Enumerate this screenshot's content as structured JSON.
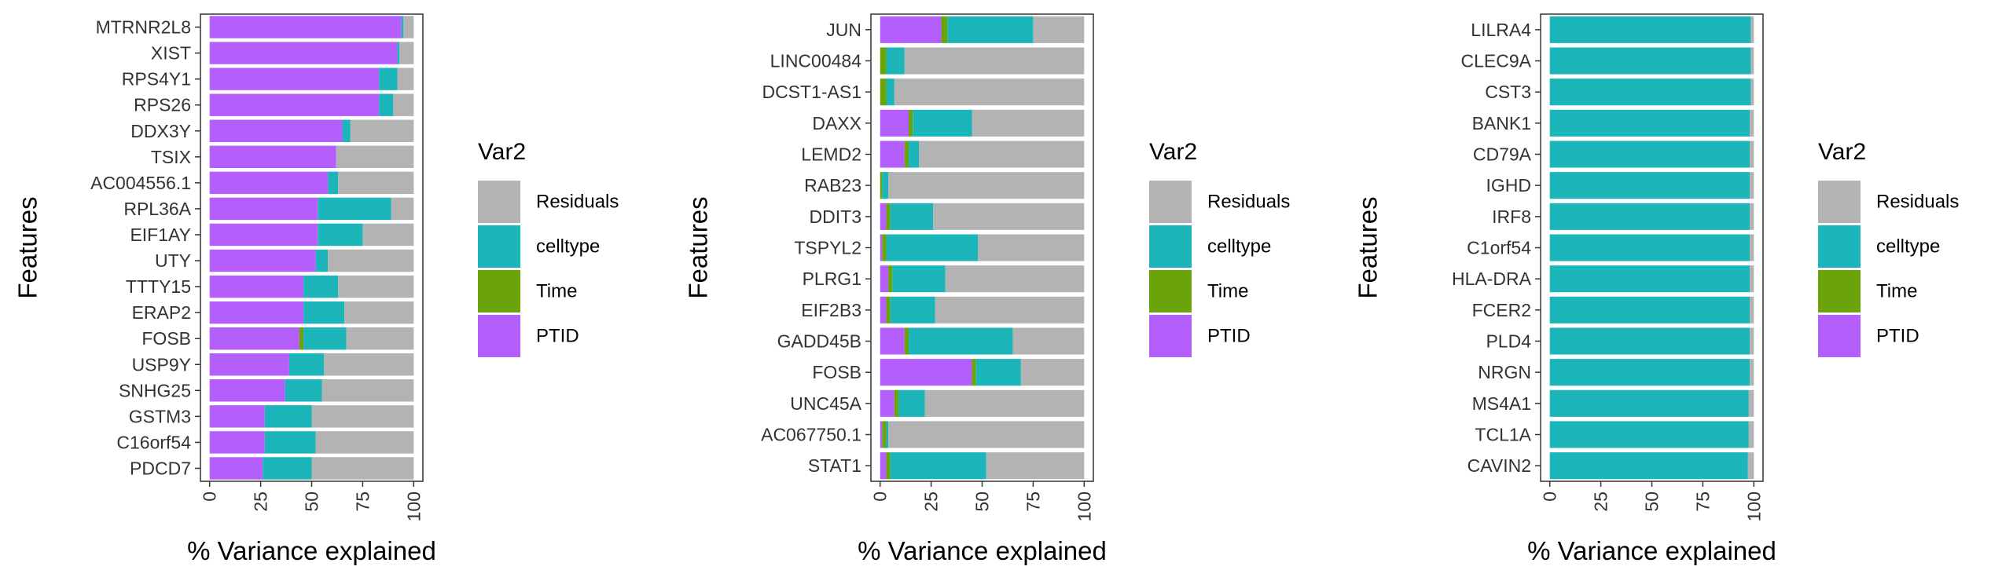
{
  "colors": {
    "Residuals": "#b3b3b3",
    "celltype": "#1cb5b9",
    "Time": "#6aa30a",
    "PTID": "#b45ffc"
  },
  "legend": {
    "title": "Var2",
    "items": [
      "Residuals",
      "celltype",
      "Time",
      "PTID"
    ]
  },
  "chart_data": [
    {
      "type": "bar",
      "stacked": true,
      "orientation": "horizontal",
      "xlabel": "% Variance explained",
      "ylabel": "Features",
      "xlim": [
        0,
        100
      ],
      "xticks": [
        "0",
        "25",
        "50",
        "75",
        "100"
      ],
      "categories": [
        "MTRNR2L8",
        "XIST",
        "RPS4Y1",
        "RPS26",
        "DDX3Y",
        "TSIX",
        "AC004556.1",
        "RPL36A",
        "EIF1AY",
        "UTY",
        "TTTY15",
        "ERAP2",
        "FOSB",
        "USP9Y",
        "SNHG25",
        "GSTM3",
        "C16orf54",
        "PDCD7"
      ],
      "series": [
        {
          "name": "PTID",
          "values": [
            94,
            92,
            83,
            83,
            65,
            62,
            58,
            53,
            53,
            52,
            46,
            46,
            44,
            39,
            37,
            27,
            27,
            26
          ]
        },
        {
          "name": "Time",
          "values": [
            0,
            0,
            0,
            0,
            0,
            0,
            0,
            0,
            0,
            0,
            0,
            0,
            2,
            0,
            0,
            0,
            0,
            0
          ]
        },
        {
          "name": "celltype",
          "values": [
            1,
            1,
            9,
            7,
            4,
            0,
            5,
            36,
            22,
            6,
            17,
            20,
            21,
            17,
            18,
            23,
            25,
            24
          ]
        },
        {
          "name": "Residuals",
          "values": [
            5,
            7,
            8,
            10,
            31,
            38,
            37,
            11,
            25,
            42,
            37,
            34,
            33,
            44,
            45,
            50,
            48,
            50
          ]
        }
      ]
    },
    {
      "type": "bar",
      "stacked": true,
      "orientation": "horizontal",
      "xlabel": "% Variance explained",
      "ylabel": "Features",
      "xlim": [
        0,
        100
      ],
      "xticks": [
        "0",
        "25",
        "50",
        "75",
        "100"
      ],
      "categories": [
        "JUN",
        "LINC00484",
        "DCST1-AS1",
        "DAXX",
        "LEMD2",
        "RAB23",
        "DDIT3",
        "TSPYL2",
        "PLRG1",
        "EIF2B3",
        "GADD45B",
        "FOSB",
        "UNC45A",
        "AC067750.1",
        "STAT1"
      ],
      "series": [
        {
          "name": "PTID",
          "values": [
            30,
            0,
            0,
            14,
            12,
            0,
            3,
            1,
            4,
            3,
            12,
            45,
            7,
            1,
            3
          ]
        },
        {
          "name": "Time",
          "values": [
            3,
            3,
            3,
            2,
            2,
            1,
            2,
            2,
            2,
            2,
            2,
            2,
            2,
            2,
            2
          ]
        },
        {
          "name": "celltype",
          "values": [
            42,
            9,
            4,
            29,
            5,
            3,
            21,
            45,
            26,
            22,
            51,
            22,
            13,
            1,
            47
          ]
        },
        {
          "name": "Residuals",
          "values": [
            25,
            88,
            93,
            55,
            81,
            96,
            74,
            52,
            68,
            73,
            35,
            31,
            78,
            96,
            48
          ]
        }
      ]
    },
    {
      "type": "bar",
      "stacked": true,
      "orientation": "horizontal",
      "xlabel": "% Variance explained",
      "ylabel": "Features",
      "xlim": [
        0,
        100
      ],
      "xticks": [
        "0",
        "25",
        "50",
        "75",
        "100"
      ],
      "categories": [
        "LILRA4",
        "CLEC9A",
        "CST3",
        "BANK1",
        "CD79A",
        "IGHD",
        "IRF8",
        "C1orf54",
        "HLA-DRA",
        "FCER2",
        "PLD4",
        "NRGN",
        "MS4A1",
        "TCL1A",
        "CAVIN2"
      ],
      "series": [
        {
          "name": "PTID",
          "values": [
            0,
            0,
            0,
            0,
            0,
            0,
            0,
            0,
            0,
            0,
            0,
            0,
            0,
            0,
            0
          ]
        },
        {
          "name": "Time",
          "values": [
            0,
            0,
            0,
            0,
            0,
            0,
            0,
            0,
            0,
            0,
            0,
            0,
            0,
            0,
            0
          ]
        },
        {
          "name": "celltype",
          "values": [
            98.5,
            98.5,
            98.5,
            98,
            98,
            98,
            98,
            98,
            98,
            98,
            98,
            98,
            97.5,
            97.5,
            97
          ]
        },
        {
          "name": "Residuals",
          "values": [
            1.5,
            1.5,
            1.5,
            2,
            2,
            2,
            2,
            2,
            2,
            2,
            2,
            2,
            2.5,
            2.5,
            3
          ]
        }
      ]
    }
  ]
}
